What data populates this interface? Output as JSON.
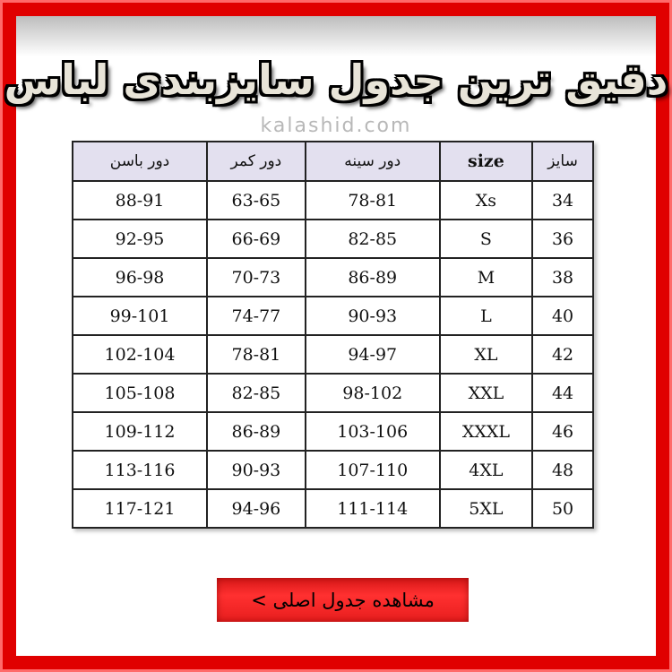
{
  "title": "دقیق ترین جدول سایزبندی لباس",
  "site": "kalashid.com",
  "table": {
    "headers": [
      "سایز",
      "size",
      "دور سینه",
      "دور کمر",
      "دور باسن"
    ],
    "rows": [
      [
        "34",
        "Xs",
        "78-81",
        "63-65",
        "88-91"
      ],
      [
        "36",
        "S",
        "82-85",
        "66-69",
        "92-95"
      ],
      [
        "38",
        "M",
        "86-89",
        "70-73",
        "96-98"
      ],
      [
        "40",
        "L",
        "90-93",
        "74-77",
        "99-101"
      ],
      [
        "42",
        "XL",
        "94-97",
        "78-81",
        "102-104"
      ],
      [
        "44",
        "XXL",
        "98-102",
        "82-85",
        "105-108"
      ],
      [
        "46",
        "XXXL",
        "103-106",
        "86-89",
        "109-112"
      ],
      [
        "48",
        "4XL",
        "107-110",
        "90-93",
        "113-116"
      ],
      [
        "50",
        "5XL",
        "111-114",
        "94-96",
        "117-121"
      ]
    ]
  },
  "button": {
    "label": "مشاهده جدول اصلی >"
  },
  "colors": {
    "frame": "#e00000",
    "header_bg": "#e3e0ef",
    "button": "#ff2a2a"
  }
}
